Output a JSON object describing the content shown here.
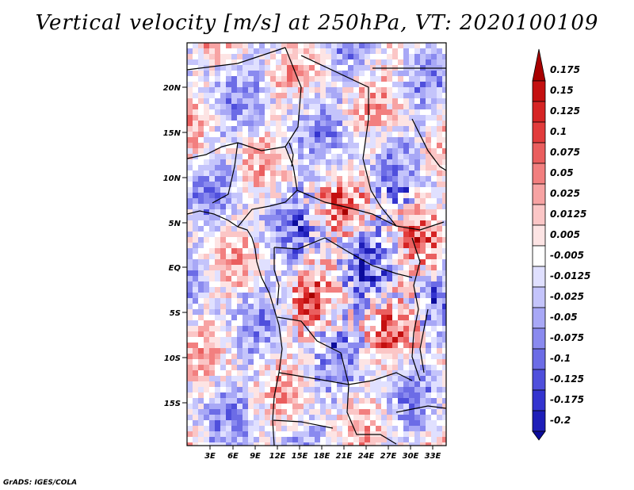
{
  "title": "Vertical velocity [m/s] at 250hPa, VT: 2020100109",
  "credit": "GrADS: IGES/COLA",
  "map": {
    "lat_labels": [
      "20N",
      "15N",
      "10N",
      "5N",
      "EQ",
      "5S",
      "10S",
      "15S"
    ],
    "lon_labels": [
      "3E",
      "6E",
      "9E",
      "12E",
      "15E",
      "18E",
      "21E",
      "24E",
      "27E",
      "30E",
      "33E"
    ]
  },
  "colorbar": {
    "levels": [
      "0.175",
      "0.15",
      "0.125",
      "0.1",
      "0.075",
      "0.05",
      "0.025",
      "0.0125",
      "0.005",
      "-0.005",
      "-0.0125",
      "-0.025",
      "-0.05",
      "-0.075",
      "-0.1",
      "-0.125",
      "-0.175",
      "-0.2"
    ],
    "colors": [
      "#a80000",
      "#c41010",
      "#d62424",
      "#e23c3c",
      "#ea5e5e",
      "#f27f7f",
      "#f7a3a3",
      "#fbc6c6",
      "#fde4e4",
      "#ffffff",
      "#e0e0ff",
      "#c4c4fb",
      "#a8a8f6",
      "#8a8aef",
      "#6c6ce6",
      "#4f4fdc",
      "#3434cf",
      "#1e1eb8",
      "#0c0c9c"
    ]
  }
}
